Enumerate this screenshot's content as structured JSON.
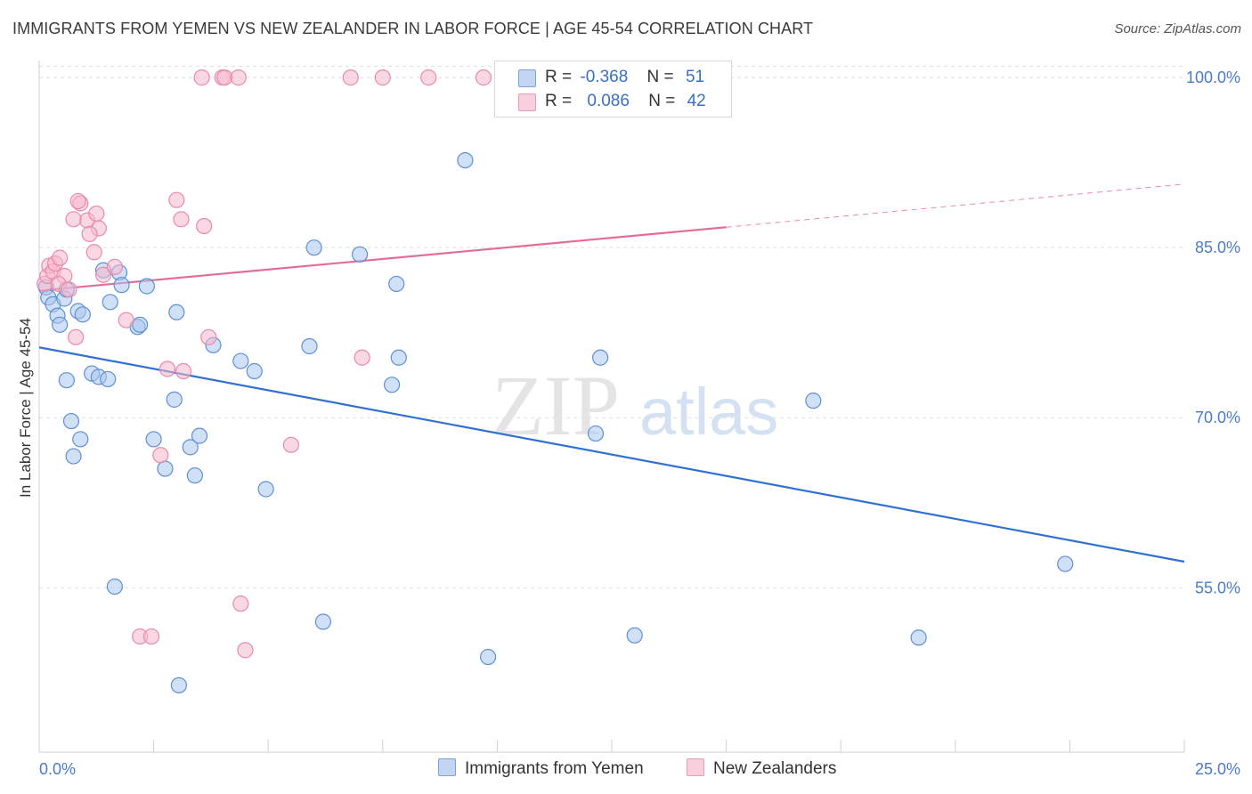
{
  "header": {
    "title": "IMMIGRANTS FROM YEMEN VS NEW ZEALANDER IN LABOR FORCE | AGE 45-54 CORRELATION CHART",
    "source": "Source: ZipAtlas.com"
  },
  "legend_top": {
    "rows": [
      {
        "r_label": "R =",
        "r_value": "-0.368",
        "n_label": "N =",
        "n_value": "51"
      },
      {
        "r_label": "R =",
        "r_value": "0.086",
        "n_label": "N =",
        "n_value": "42"
      }
    ]
  },
  "legend_bottom": {
    "series1": "Immigrants from Yemen",
    "series2": "New Zealanders"
  },
  "watermark": {
    "zip": "ZIP",
    "atlas": "atlas"
  },
  "colors": {
    "blue_fill": "#a9c6ee",
    "blue_stroke": "#5f8fd4",
    "blue_line": "#3070d0",
    "pink_fill": "#f6b8cc",
    "pink_stroke": "#e88aa8",
    "pink_line": "#e26c96",
    "tick_text": "#4a7bc8",
    "grid": "#dedede"
  },
  "chart_data": {
    "type": "scatter",
    "title": "IMMIGRANTS FROM YEMEN VS NEW ZEALANDER IN LABOR FORCE | AGE 45-54 CORRELATION CHART",
    "xlabel": "",
    "ylabel": "In Labor Force | Age 45-54",
    "xlim": [
      0,
      25
    ],
    "ylim": [
      40.5,
      101.5
    ],
    "x_tick_labels": [
      "0.0%",
      "25.0%"
    ],
    "y_ticks": [
      100,
      85,
      70,
      55
    ],
    "y_tick_labels": [
      "100.0%",
      "85.0%",
      "70.0%",
      "55.0%"
    ],
    "grid": true,
    "series": [
      {
        "name": "Immigrants from Yemen",
        "color": "#a9c6ee",
        "x": [
          0.15,
          0.2,
          0.3,
          0.4,
          0.45,
          0.55,
          0.6,
          0.85,
          0.6,
          0.95,
          0.7,
          1.15,
          1.3,
          1.5,
          1.4,
          0.9,
          0.75,
          1.55,
          1.75,
          2.15,
          2.2,
          1.8,
          2.35,
          2.5,
          2.95,
          3.0,
          2.75,
          3.3,
          3.5,
          3.4,
          3.8,
          4.4,
          4.7,
          4.95,
          5.9,
          6.0,
          6.2,
          7.0,
          7.7,
          7.85,
          7.8,
          9.3,
          9.8,
          12.15,
          12.25,
          13.0,
          16.9,
          19.2,
          22.4,
          1.65,
          3.05
        ],
        "y": [
          81.5,
          80.6,
          80.0,
          79.0,
          78.2,
          80.5,
          81.3,
          79.4,
          73.3,
          79.1,
          69.7,
          73.9,
          73.6,
          73.4,
          83.0,
          68.1,
          66.6,
          80.2,
          82.8,
          78.0,
          78.2,
          81.7,
          81.6,
          68.1,
          71.6,
          79.3,
          65.5,
          67.4,
          68.4,
          64.9,
          76.4,
          75.0,
          74.1,
          63.7,
          76.3,
          85.0,
          52.0,
          84.4,
          72.9,
          75.3,
          81.8,
          92.7,
          48.9,
          68.6,
          75.3,
          50.8,
          71.5,
          50.6,
          57.1,
          55.1,
          46.4
        ]
      },
      {
        "name": "New Zealanders",
        "color": "#f6b8cc",
        "x": [
          0.12,
          0.18,
          0.22,
          0.3,
          0.35,
          0.45,
          0.55,
          0.42,
          0.65,
          0.8,
          0.9,
          0.85,
          1.05,
          1.2,
          1.25,
          1.3,
          1.4,
          0.75,
          1.1,
          1.65,
          1.9,
          2.2,
          2.45,
          2.65,
          2.8,
          3.0,
          3.1,
          3.15,
          3.6,
          3.7,
          3.55,
          4.0,
          4.05,
          4.35,
          4.4,
          4.5,
          5.5,
          7.05,
          7.5,
          6.8,
          8.5,
          9.7
        ],
        "y": [
          81.8,
          82.5,
          83.4,
          82.9,
          83.6,
          84.1,
          82.5,
          81.8,
          81.3,
          77.1,
          88.9,
          89.1,
          87.4,
          84.6,
          88.0,
          86.7,
          82.6,
          87.5,
          86.2,
          83.3,
          78.6,
          50.7,
          50.7,
          66.7,
          74.3,
          89.2,
          87.5,
          74.1,
          86.9,
          77.1,
          100,
          100,
          100,
          100,
          53.6,
          49.5,
          67.6,
          75.3,
          100,
          100,
          100,
          100
        ]
      }
    ],
    "trendlines": [
      {
        "series": "Immigrants from Yemen",
        "x_start": 0,
        "y_start": 76.2,
        "x_end": 25,
        "y_end": 57.3,
        "style": "solid"
      },
      {
        "series": "New Zealanders",
        "x_start": 0,
        "y_start": 81.2,
        "x_end": 15.0,
        "y_end": 86.8,
        "style": "solid"
      },
      {
        "series": "New Zealanders",
        "x_start": 15.0,
        "y_start": 86.8,
        "x_end": 25,
        "y_end": 90.6,
        "style": "dashed"
      }
    ]
  }
}
